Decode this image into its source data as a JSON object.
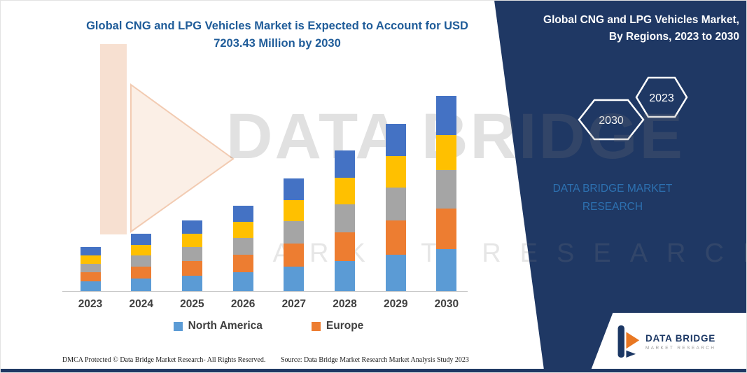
{
  "header": {
    "title": "Global CNG and LPG Vehicles Market is Expected to Account for USD 7203.43 Million by 2030"
  },
  "chart_data": {
    "type": "bar",
    "stacked": true,
    "title": "Global CNG and LPG Vehicles Market is Expected to Account for USD 7203.43 Million by 2030",
    "unit": "USD Million",
    "categories": [
      "2023",
      "2024",
      "2025",
      "2026",
      "2027",
      "2028",
      "2029",
      "2030"
    ],
    "series": [
      {
        "name": "North America",
        "color": "#5B9BD5",
        "values": [
          360,
          465,
          570,
          700,
          905,
          1110,
          1340,
          1550
        ]
      },
      {
        "name": "Europe",
        "color": "#ED7D31",
        "values": [
          335,
          440,
          540,
          645,
          850,
          1060,
          1265,
          1500
        ]
      },
      {
        "name": "Unlabeled (gray)",
        "color": "#A5A5A5",
        "values": [
          310,
          415,
          515,
          620,
          825,
          1030,
          1215,
          1420
        ]
      },
      {
        "name": "Unlabeled (yellow)",
        "color": "#FFC000",
        "values": [
          310,
          385,
          490,
          595,
          775,
          980,
          1160,
          1290
        ]
      },
      {
        "name": "Unlabeled (dark blue)",
        "color": "#4472C4",
        "values": [
          310,
          415,
          490,
          595,
          800,
          1010,
          1190,
          1443.43
        ]
      }
    ],
    "totals": [
      1625,
      2120,
      2605,
      3155,
      4155,
      5190,
      6170,
      7203.43
    ],
    "legend": [
      {
        "label": "North America",
        "color": "#5B9BD5"
      },
      {
        "label": "Europe",
        "color": "#ED7D31"
      }
    ],
    "legend_position": "bottom",
    "gridlines": false,
    "ylim": [
      0,
      7500
    ],
    "max_value_for_scale": 7203.43
  },
  "watermark": {
    "line1": "DATA BRIDGE",
    "line2": "MARKET RESEARCH"
  },
  "right_panel": {
    "background_color": "#1F3864",
    "title_line1": "Global CNG and LPG Vehicles Market,",
    "title_line2": "By Regions, 2023 to 2030",
    "hexagon_years": [
      "2030",
      "2023"
    ],
    "watermark_line1": "DATA BRIDGE MARKET",
    "watermark_line2": "RESEARCH"
  },
  "footer": {
    "dmca": "DMCA Protected © Data Bridge Market Research-  All Rights Reserved.",
    "source": "Source: Data Bridge Market Research  Market Analysis Study 2023"
  },
  "logo": {
    "title": "DATA BRIDGE",
    "subtitle": "MARKET RESEARCH"
  }
}
